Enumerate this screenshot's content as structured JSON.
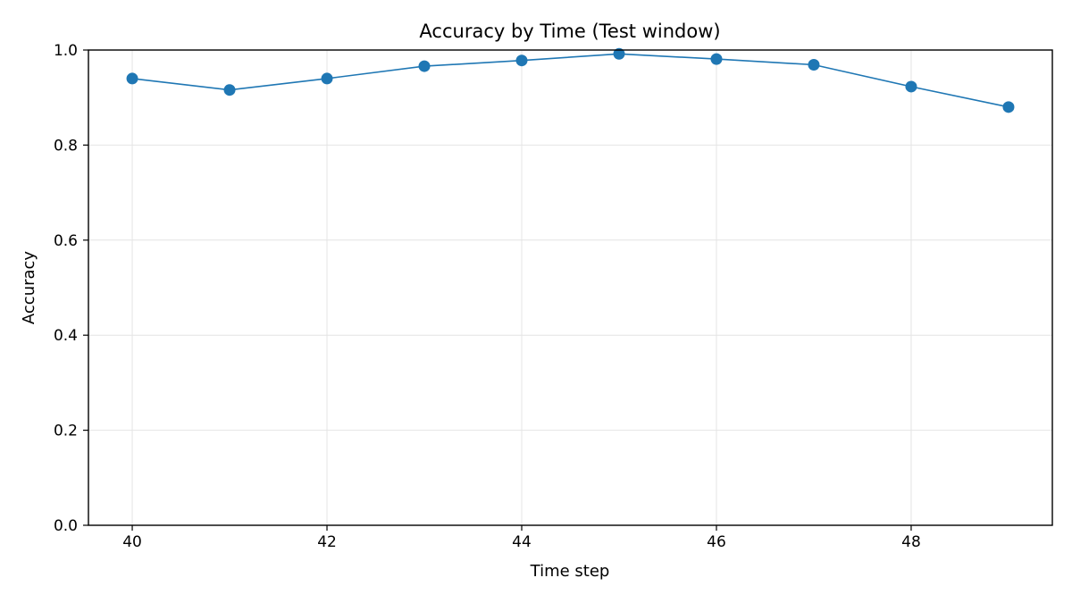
{
  "chart_data": {
    "type": "line",
    "title": "Accuracy by Time (Test window)",
    "xlabel": "Time step",
    "ylabel": "Accuracy",
    "xlim": [
      39.55,
      49.45
    ],
    "ylim": [
      0.0,
      1.0
    ],
    "x_ticks": [
      40,
      42,
      44,
      46,
      48
    ],
    "y_ticks": [
      0.0,
      0.2,
      0.4,
      0.6,
      0.8,
      1.0
    ],
    "grid": true,
    "line_color": "#1f77b4",
    "series": [
      {
        "x": [
          40,
          41,
          42,
          43,
          44,
          45,
          46,
          47,
          48,
          49
        ],
        "values": [
          0.94,
          0.916,
          0.94,
          0.966,
          0.978,
          0.992,
          0.981,
          0.969,
          0.923,
          0.88
        ]
      }
    ]
  }
}
